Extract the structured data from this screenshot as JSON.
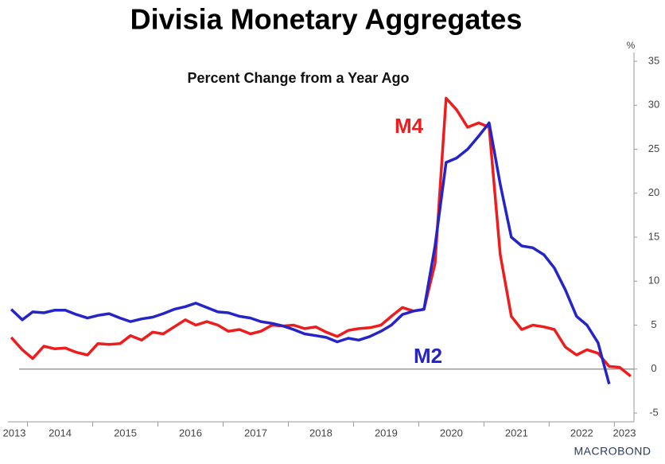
{
  "chart_data": {
    "type": "line",
    "title": "Divisia Monetary Aggregates",
    "subtitle": "Percent Change from a Year Ago",
    "y_unit": "%",
    "source": "MACROBOND",
    "x": [
      2013.75,
      2013.92,
      2014.08,
      2014.25,
      2014.42,
      2014.58,
      2014.75,
      2014.92,
      2015.08,
      2015.25,
      2015.42,
      2015.58,
      2015.75,
      2015.92,
      2016.08,
      2016.25,
      2016.42,
      2016.58,
      2016.75,
      2016.92,
      2017.08,
      2017.25,
      2017.42,
      2017.58,
      2017.75,
      2017.92,
      2018.08,
      2018.25,
      2018.42,
      2018.58,
      2018.75,
      2018.92,
      2019.08,
      2019.25,
      2019.42,
      2019.58,
      2019.75,
      2019.92,
      2020.08,
      2020.25,
      2020.42,
      2020.58,
      2020.75,
      2020.92,
      2021.08,
      2021.25,
      2021.42,
      2021.58,
      2021.75,
      2021.92,
      2022.08,
      2022.25,
      2022.42,
      2022.58,
      2022.75,
      2022.92,
      2023.08,
      2023.25
    ],
    "series": [
      {
        "name": "M4",
        "color": "#ee1c1c",
        "values": [
          3.6,
          2.2,
          1.2,
          2.6,
          2.3,
          2.4,
          1.9,
          1.6,
          2.9,
          2.8,
          2.9,
          3.8,
          3.3,
          4.2,
          4.0,
          4.8,
          5.6,
          5.0,
          5.4,
          5.0,
          4.3,
          4.5,
          4.0,
          4.3,
          5.0,
          4.9,
          5.0,
          4.6,
          4.8,
          4.2,
          3.7,
          4.4,
          4.6,
          4.7,
          5.0,
          6.0,
          7.0,
          6.6,
          6.8,
          12,
          30.8,
          29.5,
          27.5,
          28,
          27.5,
          13,
          6,
          4.5,
          5,
          4.8,
          4.5,
          2.5,
          1.6,
          2.2,
          1.8,
          0.3,
          0.2,
          -0.8
        ]
      },
      {
        "name": "M2",
        "color": "#2424c8",
        "values": [
          6.8,
          5.6,
          6.5,
          6.4,
          6.7,
          6.7,
          6.2,
          5.8,
          6.1,
          6.3,
          5.8,
          5.4,
          5.7,
          5.9,
          6.3,
          6.8,
          7.1,
          7.5,
          7.0,
          6.5,
          6.4,
          6.0,
          5.8,
          5.4,
          5.2,
          4.9,
          4.5,
          4.0,
          3.8,
          3.6,
          3.1,
          3.5,
          3.3,
          3.7,
          4.3,
          5.0,
          6.2,
          6.6,
          6.8,
          14,
          23.5,
          24,
          25,
          26.5,
          28,
          21,
          15,
          14,
          13.8,
          13.0,
          11.5,
          9,
          6.0,
          5.0,
          3.0,
          -1.7,
          null,
          null
        ]
      }
    ],
    "xlim": [
      2013.7,
      2023.35
    ],
    "xticks": [
      2014,
      2015,
      2016,
      2017,
      2018,
      2019,
      2020,
      2021,
      2022,
      2023
    ],
    "year_labels": [
      2013,
      2014,
      2015,
      2016,
      2017,
      2018,
      2019,
      2020,
      2021,
      2022,
      2023
    ],
    "ylim": [
      -6,
      36
    ],
    "yticks": [
      -5,
      0,
      5,
      10,
      15,
      20,
      25,
      30,
      35
    ]
  }
}
